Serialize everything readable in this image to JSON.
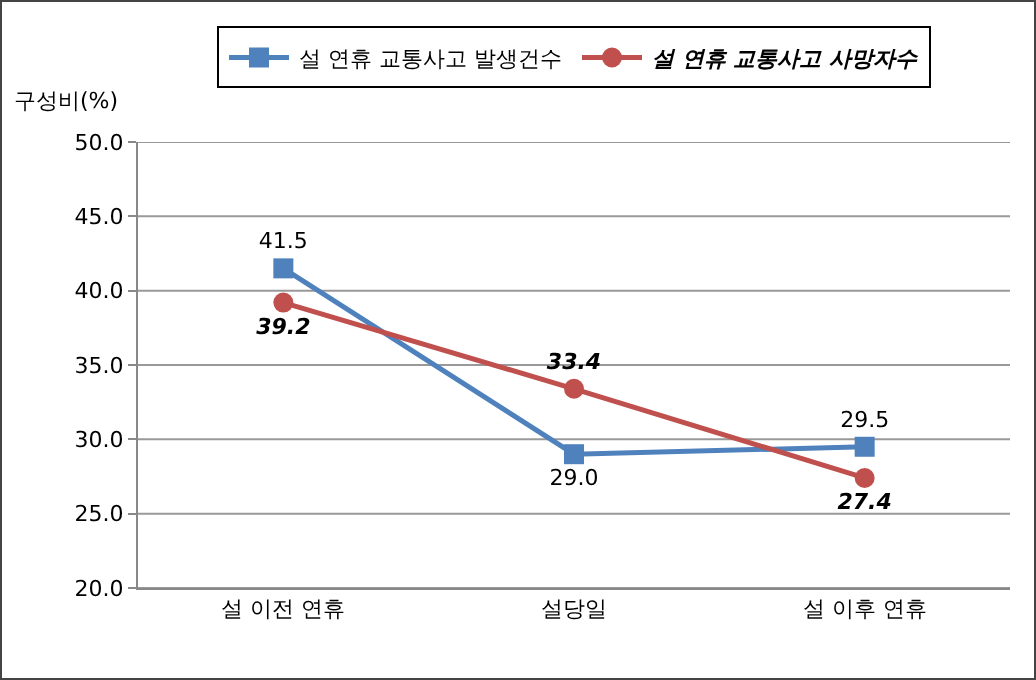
{
  "chart_data": {
    "type": "line",
    "ylabel": "구성비(%)",
    "categories": [
      "설 이전 연휴",
      "설당일",
      "설 이후 연휴"
    ],
    "series": [
      {
        "name": "설 연휴 교통사고 발생건수",
        "color": "#4f81bd",
        "marker": "square",
        "values": [
          41.5,
          29.0,
          29.5
        ],
        "value_labels": [
          "41.5",
          "29.0",
          "29.5"
        ]
      },
      {
        "name": "설 연휴 교통사고 사망자수",
        "color": "#c0504d",
        "marker": "circle",
        "values": [
          39.2,
          33.4,
          27.4
        ],
        "value_labels": [
          "39.2",
          "33.4",
          "27.4"
        ]
      }
    ],
    "ylim": [
      20,
      50
    ],
    "yticks": [
      {
        "value": 20,
        "label": "20.0"
      },
      {
        "value": 25,
        "label": "25.0"
      },
      {
        "value": 30,
        "label": "30.0"
      },
      {
        "value": 35,
        "label": "35.0"
      },
      {
        "value": 40,
        "label": "40.0"
      },
      {
        "value": 45,
        "label": "45.0"
      },
      {
        "value": 50,
        "label": "50.0"
      }
    ],
    "grid": "y",
    "legend": "top"
  }
}
